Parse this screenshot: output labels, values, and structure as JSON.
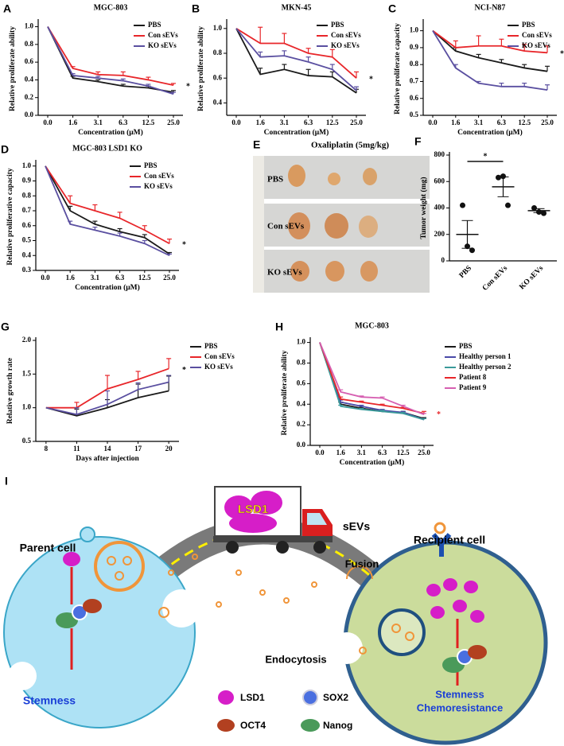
{
  "chart_data": [
    {
      "type": "line",
      "panel": "A",
      "title": "MGC-803",
      "ylabel": "Relative proliferate ability",
      "xlabel": "Concentration (μM)",
      "categories": [
        "0.0",
        "1.6",
        "3.1",
        "6.3",
        "12.5",
        "25.0"
      ],
      "ylim": [
        0,
        1.05
      ],
      "yticks": [
        {
          "value": 0,
          "label": "0.0"
        },
        0.2,
        0.4,
        0.6,
        0.8,
        {
          "value": 1,
          "label": "1.0"
        }
      ],
      "legend": "upper right",
      "annotation": "*",
      "series": [
        {
          "name": "PBS",
          "color": "#1a1a1a",
          "values": [
            1.0,
            0.42,
            0.38,
            0.33,
            0.31,
            0.26
          ],
          "errors": [
            0,
            0.02,
            0.02,
            0.02,
            0.02,
            0.02
          ]
        },
        {
          "name": "Con sEVs",
          "color": "#e8262a",
          "values": [
            1.0,
            0.53,
            0.46,
            0.45,
            0.4,
            0.34
          ],
          "errors": [
            0,
            0.02,
            0.03,
            0.04,
            0.03,
            0.02
          ]
        },
        {
          "name": "KO sEVs",
          "color": "#5a4fa0",
          "values": [
            1.0,
            0.45,
            0.42,
            0.39,
            0.33,
            0.24
          ],
          "errors": [
            0,
            0.02,
            0.02,
            0.02,
            0.02,
            0.02
          ]
        }
      ]
    },
    {
      "type": "line",
      "panel": "B",
      "title": "MKN-45",
      "ylabel": "Relative proliferate ability",
      "xlabel": "Concentration (μM)",
      "categories": [
        "0.0",
        "1.6",
        "3.1",
        "6.3",
        "12.5",
        "25.0"
      ],
      "ylim": [
        0.3,
        1.05
      ],
      "yticks": [
        0.4,
        0.6,
        0.8,
        {
          "value": 1,
          "label": "1.0"
        }
      ],
      "legend": "upper right",
      "annotation": "*",
      "series": [
        {
          "name": "PBS",
          "color": "#1a1a1a",
          "values": [
            1.0,
            0.63,
            0.67,
            0.62,
            0.61,
            0.48
          ],
          "errors": [
            0,
            0.05,
            0.04,
            0.05,
            0.04,
            0.03
          ]
        },
        {
          "name": "Con sEVs",
          "color": "#e8262a",
          "values": [
            1.0,
            0.88,
            0.88,
            0.8,
            0.77,
            0.6
          ],
          "errors": [
            0,
            0.13,
            0.08,
            0.04,
            0.06,
            0.05
          ]
        },
        {
          "name": "KO sEVs",
          "color": "#5a4fa0",
          "values": [
            1.0,
            0.77,
            0.78,
            0.73,
            0.67,
            0.5
          ],
          "errors": [
            0,
            0.04,
            0.04,
            0.04,
            0.04,
            0.03
          ]
        }
      ]
    },
    {
      "type": "line",
      "panel": "C",
      "title": "NCI-N87",
      "ylabel": "Relative proliferate capacity",
      "xlabel": "Concentration (μM)",
      "categories": [
        "0.0",
        "1.6",
        "3.1",
        "6.3",
        "12.5",
        "25.0"
      ],
      "ylim": [
        0.5,
        1.05
      ],
      "yticks": [
        0.5,
        0.6,
        0.7,
        0.8,
        0.9,
        {
          "value": 1,
          "label": "1.0"
        }
      ],
      "legend": "upper right",
      "annotation": "*",
      "series": [
        {
          "name": "PBS",
          "color": "#1a1a1a",
          "values": [
            1.0,
            0.88,
            0.84,
            0.81,
            0.78,
            0.76
          ],
          "errors": [
            0,
            0.02,
            0.02,
            0.02,
            0.02,
            0.03
          ]
        },
        {
          "name": "Con sEVs",
          "color": "#e8262a",
          "values": [
            1.0,
            0.9,
            0.91,
            0.91,
            0.88,
            0.87
          ],
          "errors": [
            0,
            0.04,
            0.06,
            0.04,
            0.04,
            0.04
          ]
        },
        {
          "name": "KO sEVs",
          "color": "#5a4fa0",
          "values": [
            1.0,
            0.78,
            0.69,
            0.67,
            0.67,
            0.65
          ],
          "errors": [
            0,
            0.02,
            0.01,
            0.02,
            0.02,
            0.03
          ]
        }
      ]
    },
    {
      "type": "line",
      "panel": "D",
      "title": "MGC-803 LSD1 KO",
      "ylabel": "Relative proliferative capacity",
      "xlabel": "Concentration (μM)",
      "categories": [
        "0.0",
        "1.6",
        "3.1",
        "6.3",
        "12.5",
        "25.0"
      ],
      "ylim": [
        0.3,
        1.02
      ],
      "yticks": [
        0.3,
        0.4,
        0.5,
        0.6,
        0.7,
        0.8,
        0.9,
        {
          "value": 1,
          "label": "1.0"
        }
      ],
      "legend": "upper right",
      "annotation": "*",
      "series": [
        {
          "name": "PBS",
          "color": "#1a1a1a",
          "values": [
            1.0,
            0.7,
            0.61,
            0.56,
            0.52,
            0.41
          ],
          "errors": [
            0,
            0.03,
            0.02,
            0.02,
            0.02,
            0.01
          ]
        },
        {
          "name": "Con sEVs",
          "color": "#e8262a",
          "values": [
            1.0,
            0.75,
            0.7,
            0.65,
            0.57,
            0.48
          ],
          "errors": [
            0,
            0.05,
            0.04,
            0.04,
            0.03,
            0.03
          ]
        },
        {
          "name": "KO sEVs",
          "color": "#5a4fa0",
          "values": [
            1.0,
            0.61,
            0.57,
            0.53,
            0.48,
            0.4
          ],
          "errors": [
            0,
            0.02,
            0.02,
            0.02,
            0.02,
            0.01
          ]
        }
      ]
    },
    {
      "type": "dot",
      "panel": "F",
      "ylabel": "Tumor weight (mg)",
      "categories": [
        "PBS",
        "Con sEVs",
        "KO sEVs"
      ],
      "ylim": [
        0,
        800
      ],
      "yticks": [
        0,
        200,
        400,
        600,
        800
      ],
      "annotation": "*",
      "points": [
        [
          420,
          110,
          80
        ],
        [
          630,
          640,
          420
        ],
        [
          400,
          370,
          360
        ]
      ],
      "means": [
        200,
        560,
        380
      ],
      "errors": [
        105,
        75,
        15
      ]
    },
    {
      "type": "line",
      "panel": "G",
      "ylabel": "Relative growth rate",
      "xlabel": "Days after injection",
      "x": [
        8,
        11,
        14,
        17,
        20
      ],
      "xlim": [
        7,
        21
      ],
      "xticks": [
        8,
        11,
        14,
        17,
        20
      ],
      "ylim": [
        0.5,
        2.0
      ],
      "yticks": [
        0.5,
        {
          "value": 1,
          "label": "1.0"
        },
        1.5,
        {
          "value": 2,
          "label": "2.0"
        }
      ],
      "legend": "right",
      "annotation": "*",
      "series": [
        {
          "name": "PBS",
          "color": "#1a1a1a",
          "values": [
            1.0,
            0.88,
            1.0,
            1.15,
            1.25
          ],
          "errors": [
            0,
            0.1,
            0.12,
            0.2,
            0.22
          ]
        },
        {
          "name": "Con sEVs",
          "color": "#e8262a",
          "values": [
            1.0,
            1.0,
            1.28,
            1.42,
            1.58
          ],
          "errors": [
            0,
            0.08,
            0.2,
            0.12,
            0.15
          ]
        },
        {
          "name": "KO sEVs",
          "color": "#5a4fa0",
          "values": [
            1.0,
            0.9,
            1.05,
            1.27,
            1.38
          ],
          "errors": [
            0,
            0.1,
            0.2,
            0.1,
            0.1
          ]
        }
      ]
    },
    {
      "type": "line",
      "panel": "H",
      "title": "MGC-803",
      "ylabel": "Relative proliferate ability",
      "xlabel": "Concentration (μM)",
      "categories": [
        "0.0",
        "1.6",
        "3.1",
        "6.3",
        "12.5",
        "25.0"
      ],
      "ylim": [
        0,
        1.02
      ],
      "yticks": [
        {
          "value": 0,
          "label": "0.0"
        },
        0.2,
        0.4,
        0.6,
        0.8,
        {
          "value": 1,
          "label": "1.0"
        }
      ],
      "legend": "right",
      "annotation": "*",
      "series": [
        {
          "name": "PBS",
          "color": "#1a1a1a",
          "values": [
            1.0,
            0.4,
            0.36,
            0.33,
            0.32,
            0.26
          ],
          "errors": [
            0,
            0.02,
            0.01,
            0.01,
            0.01,
            0.01
          ]
        },
        {
          "name": "Healthy person 1",
          "color": "#4a4aa8",
          "values": [
            1.0,
            0.42,
            0.38,
            0.34,
            0.32,
            0.25
          ],
          "errors": [
            0,
            0.02,
            0.01,
            0.01,
            0.01,
            0.01
          ]
        },
        {
          "name": "Healthy person 2",
          "color": "#3a9a9a",
          "values": [
            1.0,
            0.38,
            0.35,
            0.33,
            0.31,
            0.25
          ],
          "errors": [
            0,
            0.01,
            0.01,
            0.01,
            0.01,
            0.01
          ]
        },
        {
          "name": "Patient 8",
          "color": "#e8262a",
          "values": [
            1.0,
            0.45,
            0.42,
            0.39,
            0.36,
            0.31
          ],
          "errors": [
            0,
            0.02,
            0.01,
            0.01,
            0.01,
            0.02
          ]
        },
        {
          "name": "Patient 9",
          "color": "#d65fb1",
          "values": [
            1.0,
            0.52,
            0.47,
            0.46,
            0.38,
            0.3
          ],
          "errors": [
            0,
            0.02,
            0.01,
            0.01,
            0.01,
            0.01
          ]
        }
      ]
    }
  ],
  "photo_panel": {
    "panel": "E",
    "title": "Oxaliplatin (5mg/kg)",
    "rows": [
      "PBS",
      "Con sEVs",
      "KO sEVs"
    ]
  },
  "diagram": {
    "panel": "I",
    "truck_label": "LSD1",
    "vesicles_label": "sEVs",
    "parent": "Parent cell",
    "recipient": "Recipient cell",
    "fusion": "Fusion",
    "endocytosis": "Endocytosis",
    "parent_outcome": "Stemness",
    "recipient_outcome": [
      "Stemness",
      "Chemoresistance"
    ],
    "legend": [
      "LSD1",
      "SOX2",
      "OCT4",
      "Nanog"
    ]
  }
}
